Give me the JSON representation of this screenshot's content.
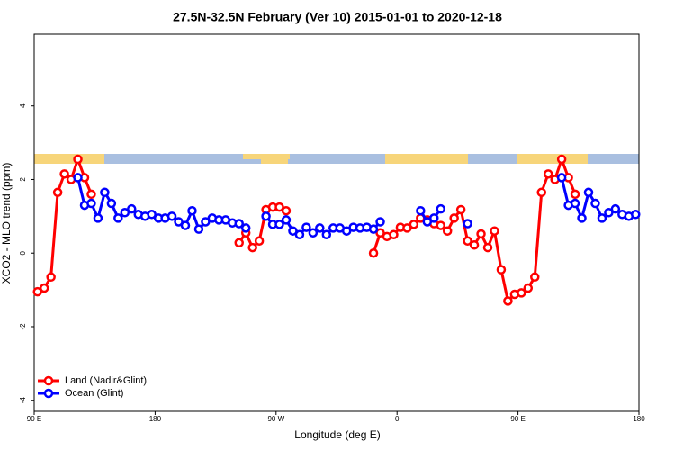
{
  "chart_data": {
    "type": "line",
    "title": "27.5N-32.5N February (Ver 10)   2015-01-01 to 2020-12-18",
    "x_label": "Longitude (deg E)",
    "y_label": "XCO2 - MLO trend (ppm)",
    "xlim": [
      90,
      540
    ],
    "xticks": [
      {
        "value": 90,
        "label": "90 E"
      },
      180,
      {
        "value": 270,
        "label": "90 W"
      },
      {
        "value": 360,
        "label": "0"
      },
      {
        "value": 450,
        "label": "90 E"
      },
      {
        "value": 540,
        "label": "180"
      }
    ],
    "ylim": [
      -4.3,
      5.95
    ],
    "yticks": [
      -4,
      -2,
      0,
      2,
      4
    ],
    "legend": "bottom-left",
    "x": [
      92.5,
      97.5,
      102.5,
      107.5,
      112.5,
      117.5,
      122.5,
      127.5,
      132.5,
      137.5,
      142.5,
      147.5,
      152.5,
      157.5,
      162.5,
      167.5,
      172.5,
      177.5,
      182.5,
      187.5,
      192.5,
      197.5,
      202.5,
      207.5,
      212.5,
      217.5,
      222.5,
      227.5,
      232.5,
      237.5,
      242.5,
      247.5,
      252.5,
      257.5,
      262.5,
      267.5,
      272.5,
      277.5,
      282.5,
      287.5,
      292.5,
      297.5,
      302.5,
      307.5,
      312.5,
      317.5,
      322.5,
      327.5,
      332.5,
      337.5,
      342.5,
      347.5,
      352.5,
      357.5,
      362.5,
      367.5,
      372.5,
      377.5,
      382.5,
      387.5,
      392.5,
      397.5,
      402.5,
      407.5,
      412.5,
      417.5,
      422.5,
      427.5,
      432.5,
      437.5,
      442.5,
      447.5,
      452.5,
      457.5,
      462.5,
      467.5,
      472.5,
      477.5,
      482.5,
      487.5,
      492.5,
      497.5,
      502.5,
      507.5,
      512.5,
      517.5,
      522.5,
      527.5,
      532.5,
      537.5
    ],
    "series": [
      {
        "name": "Land (Nadir&Glint)",
        "color": "#ff0000",
        "values": [
          -1.05,
          -0.95,
          -0.65,
          1.65,
          2.15,
          2.0,
          2.55,
          2.05,
          1.6,
          null,
          null,
          null,
          null,
          null,
          null,
          null,
          null,
          null,
          null,
          null,
          null,
          null,
          null,
          null,
          null,
          null,
          null,
          null,
          null,
          null,
          0.28,
          0.55,
          0.15,
          0.33,
          1.18,
          1.25,
          1.25,
          1.15,
          null,
          null,
          null,
          null,
          null,
          null,
          null,
          null,
          null,
          null,
          null,
          null,
          0.0,
          0.55,
          0.45,
          0.5,
          0.7,
          0.68,
          0.78,
          0.95,
          0.9,
          0.8,
          0.75,
          0.6,
          0.95,
          1.18,
          0.33,
          0.22,
          0.52,
          0.15,
          0.6,
          -0.45,
          -1.3,
          -1.12,
          -1.08,
          -0.95,
          -0.65,
          1.65,
          2.15,
          2.0,
          2.55,
          2.05,
          1.6,
          null,
          null,
          null,
          null,
          null,
          null,
          null,
          null,
          null
        ]
      },
      {
        "name": "Ocean (Glint)",
        "color": "#0000ff",
        "values": [
          null,
          null,
          null,
          null,
          null,
          null,
          2.05,
          1.3,
          1.35,
          0.95,
          1.65,
          1.35,
          0.95,
          1.1,
          1.2,
          1.05,
          1.0,
          1.05,
          0.95,
          0.95,
          1.0,
          0.85,
          0.75,
          1.15,
          0.65,
          0.85,
          0.95,
          0.9,
          0.9,
          0.82,
          0.8,
          0.68,
          null,
          null,
          1.0,
          0.78,
          0.78,
          0.9,
          0.6,
          0.5,
          0.7,
          0.55,
          0.68,
          0.5,
          0.68,
          0.68,
          0.6,
          0.7,
          0.68,
          0.7,
          0.65,
          0.85,
          null,
          null,
          null,
          null,
          null,
          1.15,
          0.85,
          0.95,
          1.2,
          null,
          null,
          null,
          0.8,
          null,
          null,
          null,
          null,
          null,
          null,
          null,
          null,
          null,
          null,
          null,
          null,
          null,
          2.05,
          1.3,
          1.35,
          0.95,
          1.65,
          1.35,
          0.95,
          1.1,
          1.2,
          1.05,
          1.0,
          1.05
        ]
      }
    ]
  }
}
